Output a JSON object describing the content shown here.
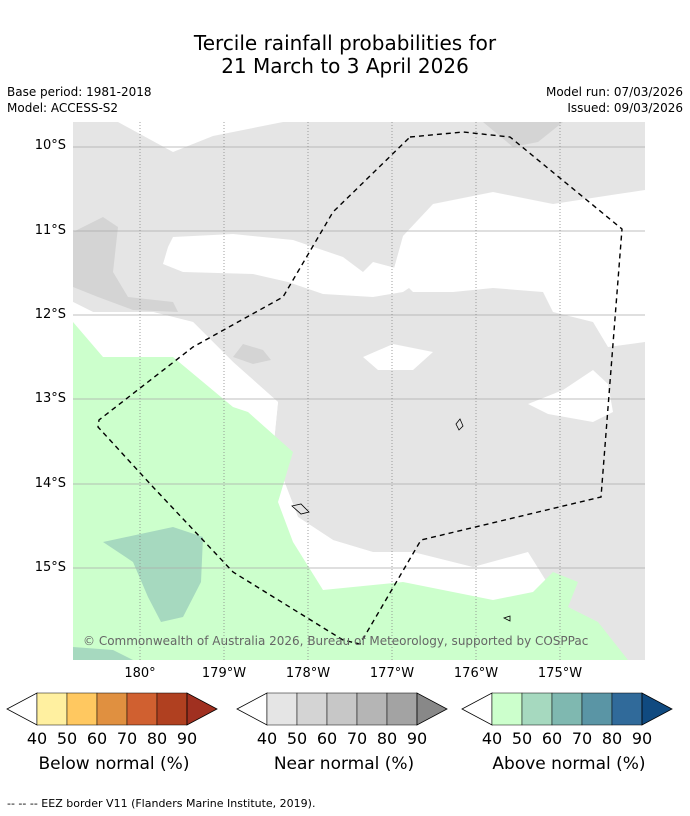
{
  "title": {
    "line1": "Tercile rainfall probabilities for",
    "line2": "21 March to 3 April 2026"
  },
  "meta": {
    "base_period": "Base period: 1981-2018",
    "model": "Model: ACCESS-S2",
    "model_run": "Model run: 07/03/2026",
    "issued": "Issued: 09/03/2026"
  },
  "map": {
    "lat_labels": [
      "10°S",
      "11°S",
      "12°S",
      "13°S",
      "14°S",
      "15°S"
    ],
    "lon_labels": [
      "180°",
      "179°W",
      "178°W",
      "177°W",
      "176°W",
      "175°W"
    ],
    "copyright": "© Commonwealth of Australia 2026, Bureau of Meteorology, supported by COSPPac",
    "colors": {
      "near_40": "#e5e5e5",
      "near_50": "#d4d4d4",
      "above_40": "#ccffcc",
      "above_50": "#a6d9bf"
    }
  },
  "legends": [
    {
      "title": "Below normal (%)",
      "ticks": [
        "40",
        "50",
        "60",
        "70",
        "80",
        "90"
      ],
      "colors": [
        "#fff0a0",
        "#ffc860",
        "#e09040",
        "#d06030",
        "#b04020",
        "#a03020"
      ]
    },
    {
      "title": "Near normal (%)",
      "ticks": [
        "40",
        "50",
        "60",
        "70",
        "80",
        "90"
      ],
      "colors": [
        "#e5e5e5",
        "#d4d4d4",
        "#c7c7c7",
        "#b5b5b5",
        "#a3a3a3",
        "#888888"
      ]
    },
    {
      "title": "Above normal (%)",
      "ticks": [
        "40",
        "50",
        "60",
        "70",
        "80",
        "90"
      ],
      "colors": [
        "#ccffcc",
        "#a6d9bf",
        "#7fb8b0",
        "#5a95a5",
        "#306a9a",
        "#104a80"
      ]
    }
  ],
  "footer": "--  --  -- EEZ border V11 (Flanders Marine Institute, 2019)."
}
